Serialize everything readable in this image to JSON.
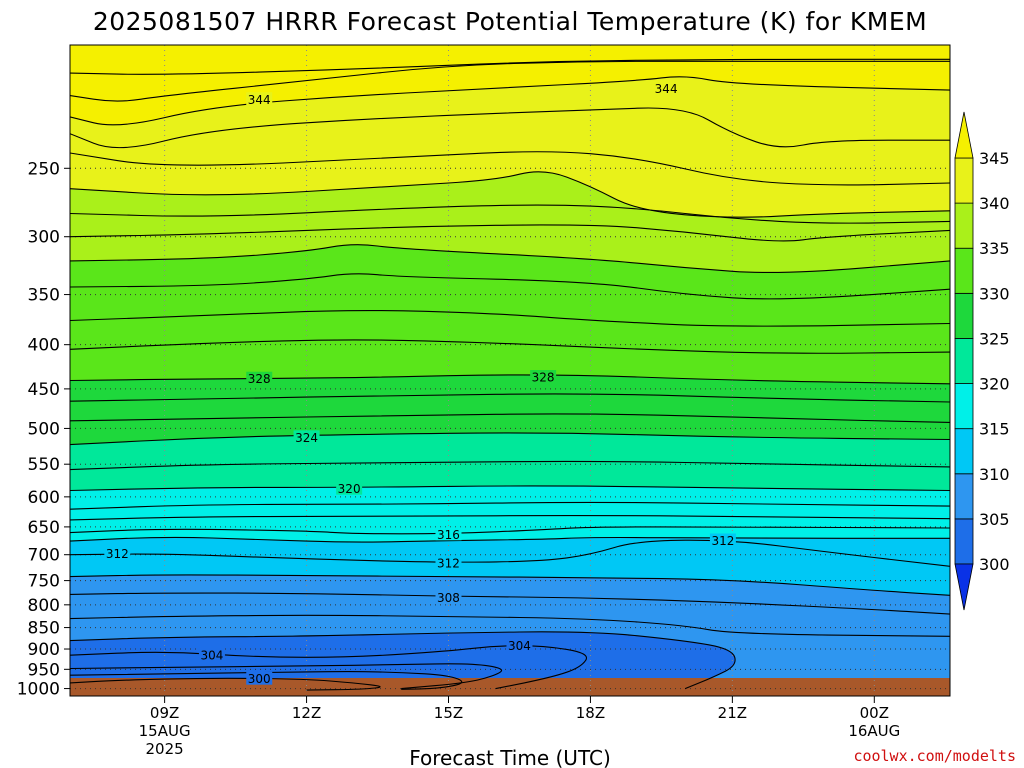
{
  "chart_data": {
    "type": "heatmap",
    "title": "2025081507 HRRR Forecast Potential Temperature (K) for KMEM",
    "xlabel": "Forecast Time (UTC)",
    "ylabel": "",
    "y_axis": "pressure (hPa), inverted, log-scaled",
    "ylim": [
      1020,
      180
    ],
    "xlim": [
      7,
      25.6
    ],
    "y_ticks": [
      250,
      300,
      350,
      400,
      450,
      500,
      550,
      600,
      650,
      700,
      750,
      800,
      850,
      900,
      950,
      1000
    ],
    "x_ticks": [
      {
        "x": 9,
        "label": "09Z",
        "line2": "15AUG",
        "line3": "2025"
      },
      {
        "x": 12,
        "label": "12Z",
        "line2": "",
        "line3": ""
      },
      {
        "x": 15,
        "label": "15Z",
        "line2": "",
        "line3": ""
      },
      {
        "x": 18,
        "label": "18Z",
        "line2": "",
        "line3": ""
      },
      {
        "x": 21,
        "label": "21Z",
        "line2": "",
        "line3": ""
      },
      {
        "x": 24,
        "label": "00Z",
        "line2": "16AUG",
        "line3": ""
      }
    ],
    "grid": true,
    "colorbar": {
      "levels": [
        300,
        305,
        310,
        315,
        320,
        325,
        330,
        335,
        340,
        345
      ],
      "colors": [
        "#0a32e6",
        "#1e6ee8",
        "#2e96f0",
        "#00c8f5",
        "#00f0e8",
        "#00e89a",
        "#1ed83c",
        "#5ae61a",
        "#aaf01a",
        "#e8f21a",
        "#f5f000"
      ],
      "extend": "both"
    },
    "contour_labels": [
      {
        "text": "344",
        "x": 11.0,
        "p": 208
      },
      {
        "text": "344",
        "x": 19.6,
        "p": 202
      },
      {
        "text": "328",
        "x": 11.0,
        "p": 438
      },
      {
        "text": "328",
        "x": 17.0,
        "p": 436
      },
      {
        "text": "324",
        "x": 12.0,
        "p": 512
      },
      {
        "text": "320",
        "x": 12.9,
        "p": 587
      },
      {
        "text": "316",
        "x": 15.0,
        "p": 663
      },
      {
        "text": "312",
        "x": 8.0,
        "p": 698
      },
      {
        "text": "312",
        "x": 15.0,
        "p": 716
      },
      {
        "text": "312",
        "x": 20.8,
        "p": 674
      },
      {
        "text": "308",
        "x": 15.0,
        "p": 785
      },
      {
        "text": "304",
        "x": 10.0,
        "p": 915
      },
      {
        "text": "304",
        "x": 16.5,
        "p": 892
      },
      {
        "text": "300",
        "x": 11.0,
        "p": 974
      }
    ],
    "isentropes_approx": [
      {
        "theta": 348,
        "x": [
          7,
          9,
          13,
          17,
          21,
          25.6
        ],
        "p": [
          194,
          195,
          192,
          188,
          187,
          187
        ]
      },
      {
        "theta": 346,
        "x": [
          7,
          8,
          9,
          12,
          15,
          18,
          21,
          25.6
        ],
        "p": [
          206,
          210,
          206,
          198,
          190,
          188,
          188,
          188
        ]
      },
      {
        "theta": 344,
        "x": [
          7,
          8,
          10,
          13,
          16,
          19,
          20,
          21,
          25.6
        ],
        "p": [
          218,
          225,
          212,
          206,
          202,
          198,
          195,
          200,
          203
        ]
      },
      {
        "theta": 342,
        "x": [
          7,
          8,
          10,
          14,
          18,
          20,
          21,
          22,
          23,
          25.6
        ],
        "p": [
          228,
          240,
          225,
          218,
          214,
          212,
          228,
          238,
          232,
          232
        ]
      },
      {
        "theta": 341,
        "x": [
          7,
          9,
          14,
          17,
          19,
          21,
          23,
          25.6
        ],
        "p": [
          240,
          250,
          243,
          238,
          243,
          258,
          262,
          260
        ]
      },
      {
        "theta": 340,
        "x": [
          7,
          10,
          14,
          16,
          17,
          18,
          19,
          21,
          23,
          25.6
        ],
        "p": [
          264,
          270,
          262,
          258,
          250,
          262,
          280,
          286,
          282,
          280
        ]
      },
      {
        "theta": 338,
        "x": [
          7,
          10,
          14,
          17,
          19,
          21,
          23,
          25.6
        ],
        "p": [
          282,
          285,
          278,
          275,
          278,
          286,
          290,
          288
        ]
      },
      {
        "theta": 337,
        "x": [
          7,
          10,
          14,
          18,
          20,
          22,
          23,
          25.6
        ],
        "p": [
          300,
          298,
          292,
          290,
          296,
          305,
          300,
          295
        ]
      },
      {
        "theta": 335,
        "x": [
          7,
          10,
          12,
          13,
          14,
          18,
          20,
          22,
          25.6
        ],
        "p": [
          320,
          318,
          312,
          305,
          310,
          318,
          326,
          332,
          320
        ]
      },
      {
        "theta": 334,
        "x": [
          7,
          10,
          12,
          13,
          14,
          18,
          20,
          22,
          25.6
        ],
        "p": [
          343,
          342,
          336,
          330,
          334,
          338,
          350,
          356,
          345
        ]
      },
      {
        "theta": 332,
        "x": [
          7,
          10,
          13,
          16,
          18,
          21,
          25.6
        ],
        "p": [
          375,
          370,
          364,
          368,
          375,
          382,
          378
        ]
      },
      {
        "theta": 331,
        "x": [
          7,
          10,
          13,
          16,
          19,
          22,
          25.6
        ],
        "p": [
          405,
          398,
          394,
          398,
          405,
          410,
          408
        ]
      },
      {
        "theta": 328,
        "x": [
          7,
          10,
          13,
          17,
          21,
          25.6
        ],
        "p": [
          440,
          438,
          437,
          432,
          440,
          444
        ]
      },
      {
        "theta": 327,
        "x": [
          7,
          10,
          14,
          18,
          22,
          25.6
        ],
        "p": [
          465,
          462,
          458,
          455,
          462,
          466
        ]
      },
      {
        "theta": 326,
        "x": [
          7,
          10,
          14,
          18,
          22,
          25.6
        ],
        "p": [
          490,
          487,
          483,
          480,
          487,
          492
        ]
      },
      {
        "theta": 324,
        "x": [
          7,
          10,
          13,
          17,
          21,
          25.6
        ],
        "p": [
          522,
          512,
          508,
          505,
          512,
          515
        ]
      },
      {
        "theta": 322,
        "x": [
          7,
          10,
          14,
          18,
          22,
          25.6
        ],
        "p": [
          558,
          550,
          548,
          545,
          550,
          554
        ]
      },
      {
        "theta": 320,
        "x": [
          7,
          10,
          13,
          17,
          21,
          25.6
        ],
        "p": [
          590,
          585,
          585,
          582,
          586,
          590
        ]
      },
      {
        "theta": 319,
        "x": [
          7,
          10,
          14,
          18,
          22,
          25.6
        ],
        "p": [
          620,
          612,
          612,
          608,
          612,
          615
        ]
      },
      {
        "theta": 318,
        "x": [
          7,
          10,
          14,
          18,
          22,
          25.6
        ],
        "p": [
          638,
          632,
          632,
          630,
          633,
          636
        ]
      },
      {
        "theta": 316,
        "x": [
          7,
          9,
          12,
          13,
          15,
          17,
          18,
          21,
          25.6
        ],
        "p": [
          660,
          653,
          657,
          662,
          662,
          655,
          650,
          650,
          652
        ]
      },
      {
        "theta": 315,
        "x": [
          7,
          9,
          11,
          13,
          15,
          17,
          18,
          21,
          25.6
        ],
        "p": [
          675,
          667,
          672,
          678,
          674,
          672,
          668,
          670,
          670
        ]
      },
      {
        "theta": 312,
        "x": [
          7,
          9,
          12,
          15,
          17,
          18,
          19,
          21,
          23,
          25.6
        ],
        "p": [
          700,
          698,
          708,
          715,
          712,
          700,
          674,
          673,
          695,
          722
        ]
      },
      {
        "theta": 310,
        "x": [
          7,
          9,
          12,
          15,
          18,
          21,
          24,
          25.6
        ],
        "p": [
          742,
          738,
          740,
          742,
          744,
          748,
          770,
          780
        ]
      },
      {
        "theta": 308,
        "x": [
          7,
          9,
          12,
          15,
          18,
          21,
          24,
          25.6
        ],
        "p": [
          778,
          775,
          776,
          782,
          785,
          795,
          810,
          820
        ]
      },
      {
        "theta": 306,
        "x": [
          7,
          9,
          12,
          15,
          18,
          20,
          21,
          25.6
        ],
        "p": [
          830,
          825,
          822,
          825,
          830,
          845,
          865,
          870
        ]
      },
      {
        "theta": 305,
        "x": [
          7,
          9,
          12,
          15,
          18,
          20,
          21,
          21.1,
          20.6,
          20.0
        ],
        "p": [
          880,
          872,
          870,
          862,
          858,
          880,
          900,
          940,
          970,
          1000
        ]
      },
      {
        "theta": 304,
        "x": [
          7,
          9,
          11,
          13,
          15,
          16,
          17,
          18,
          17.8,
          17.2,
          16.0
        ],
        "p": [
          915,
          905,
          920,
          920,
          905,
          892,
          892,
          910,
          945,
          970,
          1000
        ]
      },
      {
        "theta": 303,
        "x": [
          7,
          9,
          12,
          14,
          15.5,
          16.2,
          16.0,
          15.4,
          14.0
        ],
        "p": [
          948,
          945,
          942,
          938,
          935,
          948,
          965,
          985,
          1000
        ]
      },
      {
        "theta": 302,
        "x": [
          7,
          9,
          11,
          13,
          14,
          15,
          15.4,
          14.8,
          14.0
        ],
        "p": [
          965,
          962,
          958,
          955,
          958,
          965,
          985,
          1000,
          1002
        ]
      },
      {
        "theta": 300,
        "x": [
          7,
          8,
          10,
          12,
          13,
          13.7,
          13.2,
          12.0
        ],
        "p": [
          985,
          978,
          972,
          975,
          985,
          995,
          1002,
          1004
        ]
      }
    ]
  },
  "credit": "coolwx.com/modelts"
}
